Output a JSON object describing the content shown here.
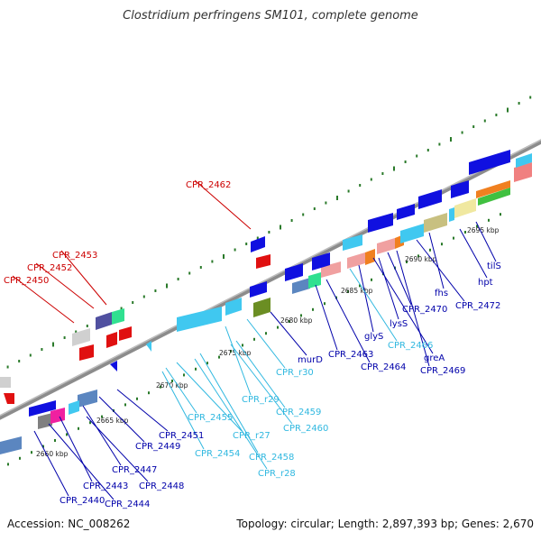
{
  "title": "Clostridium perfringens SM101, complete genome",
  "footer": {
    "accession": "Accession: NC_008262",
    "summary": "Topology: circular; Length: 2,897,393 bp; Genes: 2,670"
  },
  "colors": {
    "backbone": "#8c8c8c",
    "gene_blue": "#1010e0",
    "gene_cyan": "#40c8f0",
    "label_red": "#cc0000",
    "label_blue": "#0000aa",
    "label_cyan": "#30b8e0",
    "dot_green": "#2a7a2a"
  },
  "ticks": [
    "2660 kbp",
    "2665 kbp",
    "2670 kbp",
    "2675 kbp",
    "2680 kbp",
    "2685 kbp",
    "2690 kbp",
    "2695 kbp"
  ],
  "labels": [
    {
      "text": "CPR_2462",
      "color": "red"
    },
    {
      "text": "CPR_2453",
      "color": "red"
    },
    {
      "text": "CPR_2452",
      "color": "red"
    },
    {
      "text": "CPR_2450",
      "color": "red"
    },
    {
      "text": "tilS",
      "color": "blue"
    },
    {
      "text": "hpt",
      "color": "blue"
    },
    {
      "text": "fhs",
      "color": "blue"
    },
    {
      "text": "CPR_2472",
      "color": "blue"
    },
    {
      "text": "CPR_2470",
      "color": "blue"
    },
    {
      "text": "lysS",
      "color": "blue"
    },
    {
      "text": "glyS",
      "color": "blue"
    },
    {
      "text": "CPR_2466",
      "color": "cyan"
    },
    {
      "text": "greA",
      "color": "blue"
    },
    {
      "text": "CPR_2469",
      "color": "blue"
    },
    {
      "text": "CPR_2463",
      "color": "blue"
    },
    {
      "text": "CPR_2464",
      "color": "blue"
    },
    {
      "text": "murD",
      "color": "blue"
    },
    {
      "text": "CPR_r30",
      "color": "cyan"
    },
    {
      "text": "CPR_r29",
      "color": "cyan"
    },
    {
      "text": "CPR_2459",
      "color": "cyan"
    },
    {
      "text": "CPR_2460",
      "color": "cyan"
    },
    {
      "text": "CPR_2455",
      "color": "cyan"
    },
    {
      "text": "CPR_r27",
      "color": "cyan"
    },
    {
      "text": "CPR_2454",
      "color": "cyan"
    },
    {
      "text": "CPR_2458",
      "color": "cyan"
    },
    {
      "text": "CPR_r28",
      "color": "cyan"
    },
    {
      "text": "CPR_2451",
      "color": "blue"
    },
    {
      "text": "CPR_2449",
      "color": "blue"
    },
    {
      "text": "CPR_2447",
      "color": "blue"
    },
    {
      "text": "CPR_2448",
      "color": "blue"
    },
    {
      "text": "CPR_2443",
      "color": "blue"
    },
    {
      "text": "CPR_2444",
      "color": "blue"
    },
    {
      "text": "CPR_2440",
      "color": "blue"
    }
  ]
}
